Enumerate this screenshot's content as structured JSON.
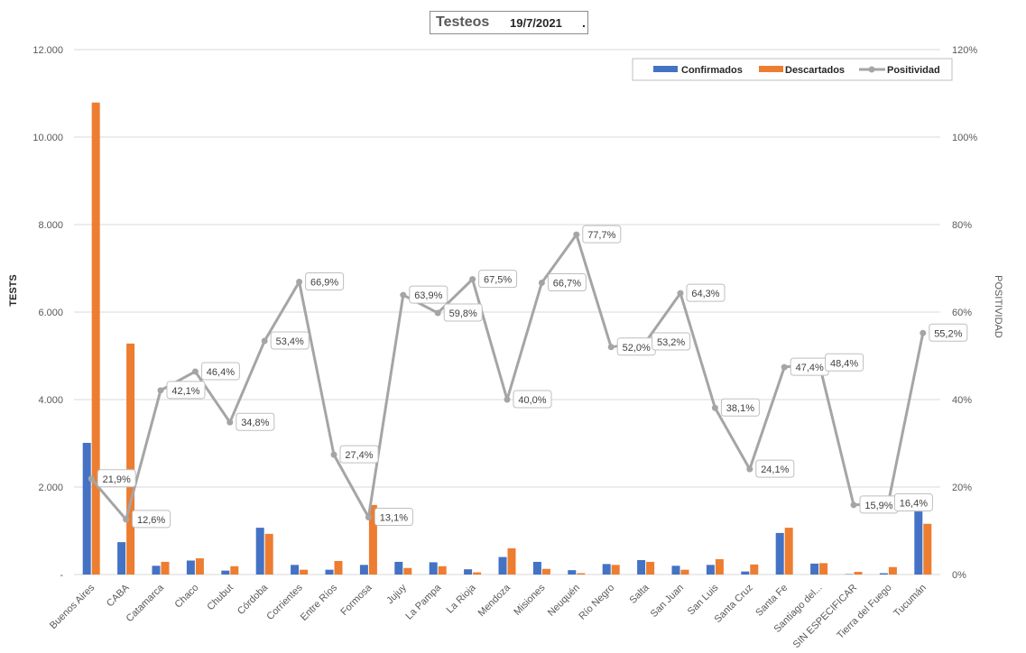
{
  "chart_data": {
    "type": "bar",
    "title": "Testeos",
    "subtitle": "19/7/2021",
    "title_suffix": ".",
    "ylabel": "TESTS",
    "y2label": "POSITIVIDAD",
    "ylim": [
      0,
      12000
    ],
    "y2lim": [
      0,
      1.2
    ],
    "yticks": [
      "-",
      "2.000",
      "4.000",
      "6.000",
      "8.000",
      "10.000",
      "12.000"
    ],
    "y2ticks": [
      "0%",
      "20%",
      "40%",
      "60%",
      "80%",
      "100%",
      "120%"
    ],
    "grid": true,
    "legend_position": "top-right",
    "categories": [
      "Buenos Aires",
      "CABA",
      "Catamarca",
      "Chaco",
      "Chubut",
      "Córdoba",
      "Corrientes",
      "Entre Ríos",
      "Formosa",
      "Jujuy",
      "La Pampa",
      "La Rioja",
      "Mendoza",
      "Misiones",
      "Neuquén",
      "Río Negro",
      "Salta",
      "San Juan",
      "San Luis",
      "Santa Cruz",
      "Santa Fe",
      "Santiago del...",
      "SIN ESPECIFICAR",
      "Tierra del Fuego",
      "Tucumán"
    ],
    "series": [
      {
        "name": "Confirmados",
        "kind": "bar",
        "axis": "left",
        "color": "#4472c4",
        "values": [
          3010,
          740,
          200,
          320,
          90,
          1070,
          220,
          110,
          220,
          290,
          280,
          120,
          400,
          290,
          100,
          240,
          330,
          200,
          220,
          70,
          950,
          250,
          10,
          30,
          1440
        ]
      },
      {
        "name": "Descartados",
        "kind": "bar",
        "axis": "left",
        "color": "#ed7d31",
        "values": [
          10790,
          5280,
          290,
          370,
          190,
          930,
          110,
          310,
          1590,
          150,
          190,
          50,
          600,
          130,
          30,
          220,
          290,
          110,
          350,
          230,
          1070,
          260,
          60,
          170,
          1160
        ]
      },
      {
        "name": "Positividad",
        "kind": "line",
        "axis": "right",
        "color": "#a5a5a5",
        "values": [
          0.219,
          0.126,
          0.421,
          0.464,
          0.348,
          0.534,
          0.669,
          0.274,
          0.131,
          0.639,
          0.598,
          0.675,
          0.4,
          0.667,
          0.777,
          0.52,
          0.532,
          0.643,
          0.381,
          0.241,
          0.474,
          0.484,
          0.159,
          0.164,
          0.552
        ],
        "labels": [
          "21,9%",
          "12,6%",
          "42,1%",
          "46,4%",
          "34,8%",
          "53,4%",
          "66,9%",
          "27,4%",
          "13,1%",
          "63,9%",
          "59,8%",
          "67,5%",
          "40,0%",
          "66,7%",
          "77,7%",
          "52,0%",
          "53,2%",
          "64,3%",
          "38,1%",
          "24,1%",
          "47,4%",
          "48,4%",
          "15,9%",
          "16,4%",
          "55,2%"
        ]
      }
    ]
  }
}
